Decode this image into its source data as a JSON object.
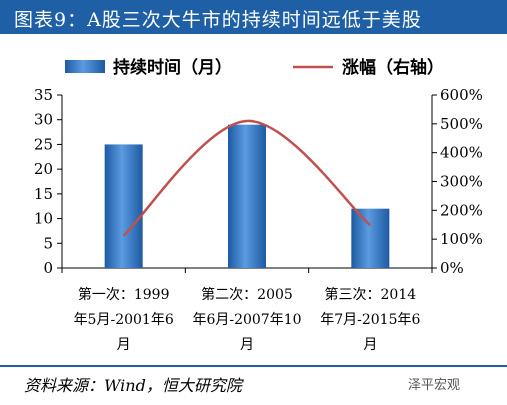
{
  "header": {
    "title": "图表9：A股三次大牛市的持续时间远低于美股"
  },
  "chart_data": {
    "type": "bar",
    "categories": [
      [
        "第一次：1999",
        "年5月-2001年6",
        "月"
      ],
      [
        "第二次：2005",
        "年6月-2007年10",
        "月"
      ],
      [
        "第三次：2014",
        "年7月-2015年6",
        "月"
      ]
    ],
    "series": [
      {
        "name": "持续时间（月）",
        "type": "bar",
        "axis": "left",
        "values": [
          25,
          29,
          12
        ],
        "color": "#2e6fb6"
      },
      {
        "name": "涨幅（右轴）",
        "type": "line",
        "axis": "right",
        "values": [
          1.12,
          5.1,
          1.48
        ],
        "color": "#c0504d"
      }
    ],
    "ylim": [
      0,
      35
    ],
    "yticks": [
      "0",
      "5",
      "10",
      "15",
      "20",
      "25",
      "30",
      "35"
    ],
    "y2lim": [
      0,
      6
    ],
    "y2ticks": [
      "0%",
      "100%",
      "200%",
      "300%",
      "400%",
      "500%",
      "600%"
    ],
    "legend": "top",
    "grid": false
  },
  "footer": {
    "source": "资料来源：Wind，恒大研究院",
    "watermark": "泽平宏观"
  }
}
